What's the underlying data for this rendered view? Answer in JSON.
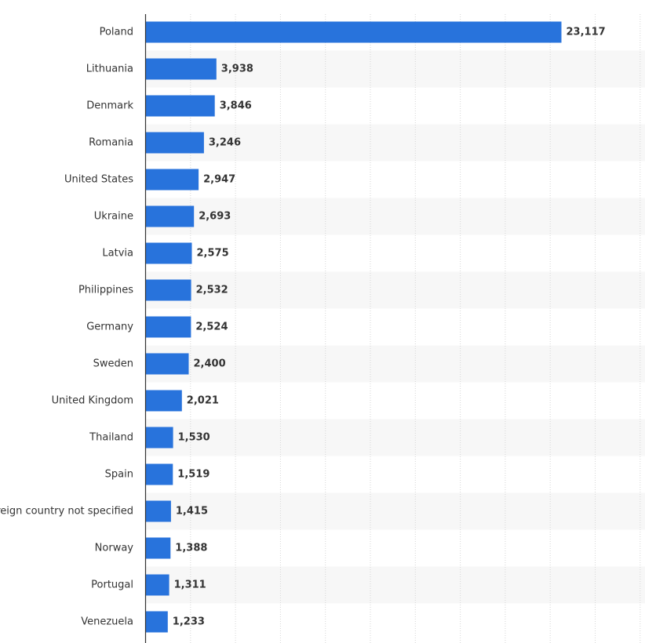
{
  "chart_data": {
    "type": "bar",
    "orientation": "horizontal",
    "categories": [
      "Poland",
      "Lithuania",
      "Denmark",
      "Romania",
      "United States",
      "Ukraine",
      "Latvia",
      "Philippines",
      "Germany",
      "Sweden",
      "United Kingdom",
      "Thailand",
      "Spain",
      "Foreign country not specified",
      "Norway",
      "Portugal",
      "Venezuela"
    ],
    "values": [
      23117,
      3938,
      3846,
      3246,
      2947,
      2693,
      2575,
      2532,
      2524,
      2400,
      2021,
      1530,
      1519,
      1415,
      1388,
      1311,
      1233
    ],
    "value_labels": [
      "23,117",
      "3,938",
      "3,846",
      "3,246",
      "2,947",
      "2,693",
      "2,575",
      "2,532",
      "2,524",
      "2,400",
      "2,021",
      "1,530",
      "1,519",
      "1,415",
      "1,388",
      "1,311",
      "1,233"
    ],
    "xlim": [
      0,
      27500
    ],
    "grid": true,
    "title": "",
    "xlabel": "",
    "ylabel": "",
    "bar_color": "#2873dc",
    "stripe_color": "#f7f7f7"
  }
}
